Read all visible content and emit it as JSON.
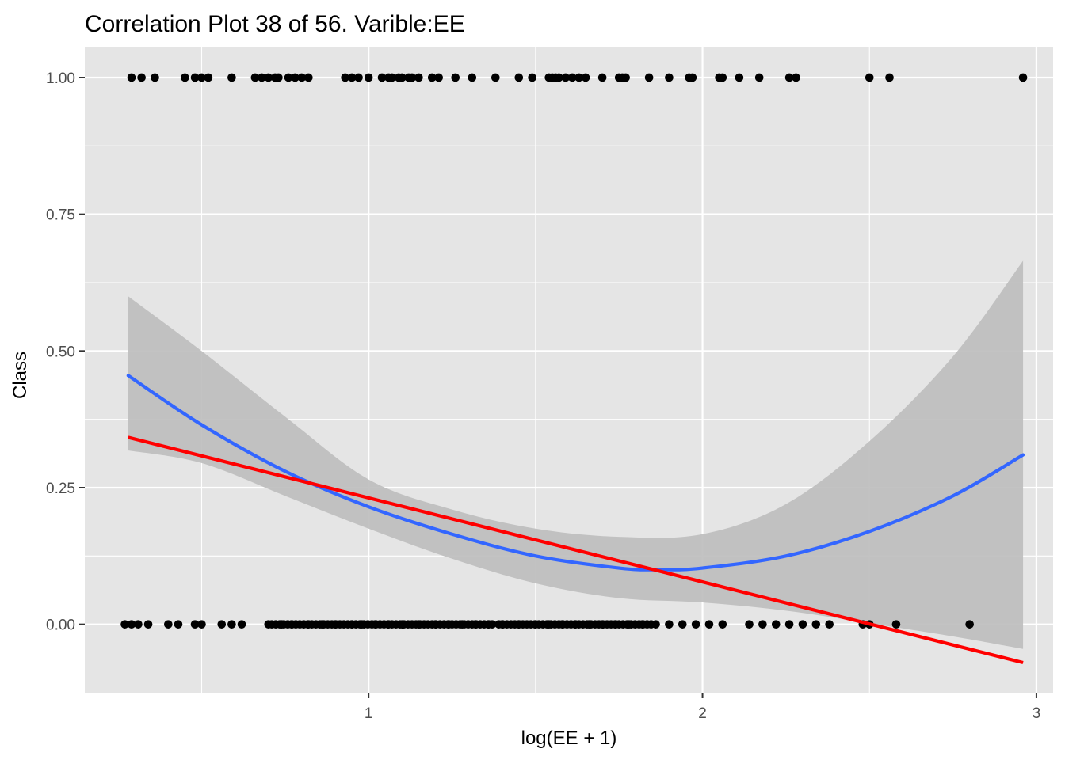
{
  "chart_data": {
    "type": "scatter",
    "title": "Correlation Plot 38 of 56. Varible:EE",
    "xlabel": "log(EE + 1)",
    "ylabel": "Class",
    "xlim": [
      0.15,
      3.05
    ],
    "ylim": [
      -0.125,
      1.055
    ],
    "x_ticks": [
      1,
      2,
      3
    ],
    "x_tick_labels": [
      "1",
      "2",
      "3"
    ],
    "y_ticks": [
      0,
      0.25,
      0.5,
      0.75,
      1
    ],
    "y_tick_labels": [
      "0.00",
      "0.25",
      "0.50",
      "0.75",
      "1.00"
    ],
    "grid": true,
    "colors": {
      "panel": "#e5e5e5",
      "grid": "#ffffff",
      "points": "#000000",
      "smooth_line": "#3366ff",
      "ribbon": "#bdbdbd",
      "linear_fit": "#ff0000"
    },
    "points": {
      "class_1_x": [
        0.29,
        0.32,
        0.36,
        0.45,
        0.48,
        0.5,
        0.52,
        0.59,
        0.66,
        0.68,
        0.7,
        0.72,
        0.73,
        0.76,
        0.78,
        0.8,
        0.82,
        0.93,
        0.95,
        0.97,
        1.0,
        1.04,
        1.06,
        1.07,
        1.09,
        1.1,
        1.12,
        1.13,
        1.15,
        1.19,
        1.21,
        1.26,
        1.31,
        1.38,
        1.45,
        1.49,
        1.54,
        1.55,
        1.56,
        1.57,
        1.59,
        1.61,
        1.63,
        1.65,
        1.7,
        1.75,
        1.76,
        1.77,
        1.84,
        1.9,
        1.96,
        1.97,
        2.05,
        2.06,
        2.11,
        2.17,
        2.26,
        2.28,
        2.5,
        2.56,
        2.96
      ],
      "class_0_x": [
        0.27,
        0.29,
        0.31,
        0.34,
        0.4,
        0.43,
        0.48,
        0.5,
        0.56,
        0.59,
        0.62,
        0.7,
        0.74,
        0.77,
        0.82,
        0.86,
        0.9,
        0.95,
        0.98,
        1.02,
        1.06,
        1.1,
        1.15,
        1.2,
        1.24,
        1.28,
        1.32,
        1.36,
        1.4,
        1.45,
        1.5,
        1.54,
        1.58,
        1.62,
        1.66,
        1.7,
        1.74,
        1.78,
        1.82,
        1.86,
        1.9,
        1.94,
        1.98,
        2.02,
        2.06,
        2.14,
        2.18,
        2.22,
        2.26,
        2.3,
        2.34,
        2.38,
        2.48,
        2.5,
        2.58,
        2.8
      ],
      "class_0_x_ranges": [
        [
          0.71,
          1.38
        ],
        [
          1.39,
          1.85
        ]
      ]
    },
    "series": [
      {
        "kind": "smooth",
        "x": [
          0.28,
          0.5,
          0.75,
          1.0,
          1.25,
          1.5,
          1.75,
          1.87,
          2.0,
          2.25,
          2.5,
          2.75,
          2.96
        ],
        "y": [
          0.455,
          0.365,
          0.28,
          0.215,
          0.165,
          0.125,
          0.103,
          0.1,
          0.103,
          0.125,
          0.17,
          0.235,
          0.31
        ]
      },
      {
        "kind": "ribbon",
        "x": [
          0.28,
          0.5,
          0.75,
          1.0,
          1.25,
          1.5,
          1.75,
          2.0,
          2.25,
          2.5,
          2.75,
          2.96
        ],
        "y_upper": [
          0.6,
          0.5,
          0.38,
          0.265,
          0.21,
          0.175,
          0.16,
          0.165,
          0.22,
          0.335,
          0.49,
          0.665
        ],
        "y_lower": [
          0.318,
          0.295,
          0.235,
          0.175,
          0.12,
          0.075,
          0.048,
          0.04,
          0.025,
          0.002,
          -0.022,
          -0.045
        ]
      },
      {
        "kind": "linear",
        "x": [
          0.28,
          2.96
        ],
        "y": [
          0.342,
          -0.07
        ]
      }
    ]
  }
}
